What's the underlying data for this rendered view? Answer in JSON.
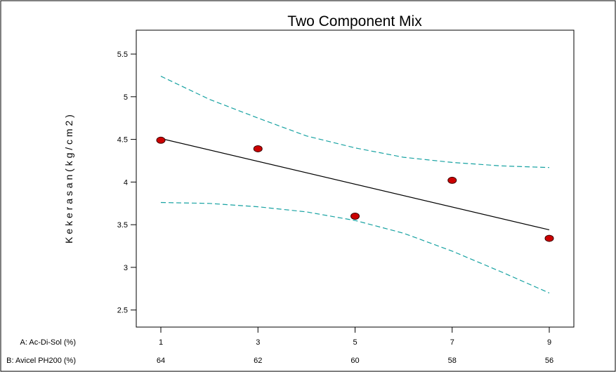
{
  "chart_data": {
    "type": "scatter",
    "title": "Two Component Mix",
    "ylabel": "K e k e r a s a n   ( k g / c m 2 )",
    "ylim": [
      2.3,
      5.78
    ],
    "xlim": [
      1,
      9
    ],
    "y_ticks": [
      "2.5",
      "3",
      "3.5",
      "4",
      "4.5",
      "5",
      "5.5"
    ],
    "x_ticks": [
      1,
      3,
      5,
      7,
      9
    ],
    "component_axes": [
      {
        "label": "A: Ac-Di-Sol (%)",
        "values": [
          "1",
          "3",
          "5",
          "7",
          "9"
        ]
      },
      {
        "label": "B: Avicel PH200 (%)",
        "values": [
          "64",
          "62",
          "60",
          "58",
          "56"
        ]
      }
    ],
    "points": [
      {
        "x": 1,
        "y": 4.49
      },
      {
        "x": 3,
        "y": 4.39
      },
      {
        "x": 5,
        "y": 3.6
      },
      {
        "x": 7,
        "y": 4.02
      },
      {
        "x": 9,
        "y": 3.34
      }
    ],
    "fit_line": {
      "x": [
        1,
        9
      ],
      "y": [
        4.51,
        3.44
      ]
    },
    "upper_ci": {
      "x": [
        1,
        2,
        3,
        4,
        5,
        6,
        7,
        8,
        9
      ],
      "y": [
        5.24,
        4.97,
        4.75,
        4.54,
        4.4,
        4.29,
        4.23,
        4.19,
        4.17
      ]
    },
    "lower_ci": {
      "x": [
        1,
        2,
        3,
        4,
        5,
        6,
        7,
        8,
        9
      ],
      "y": [
        3.76,
        3.75,
        3.71,
        3.65,
        3.55,
        3.4,
        3.19,
        2.95,
        2.7
      ]
    },
    "grid": false,
    "colors": {
      "points": "#cc0000",
      "point_outline": "#3a0000",
      "fit": "#000000",
      "ci": "#17a2a2",
      "frame": "#000000"
    }
  }
}
